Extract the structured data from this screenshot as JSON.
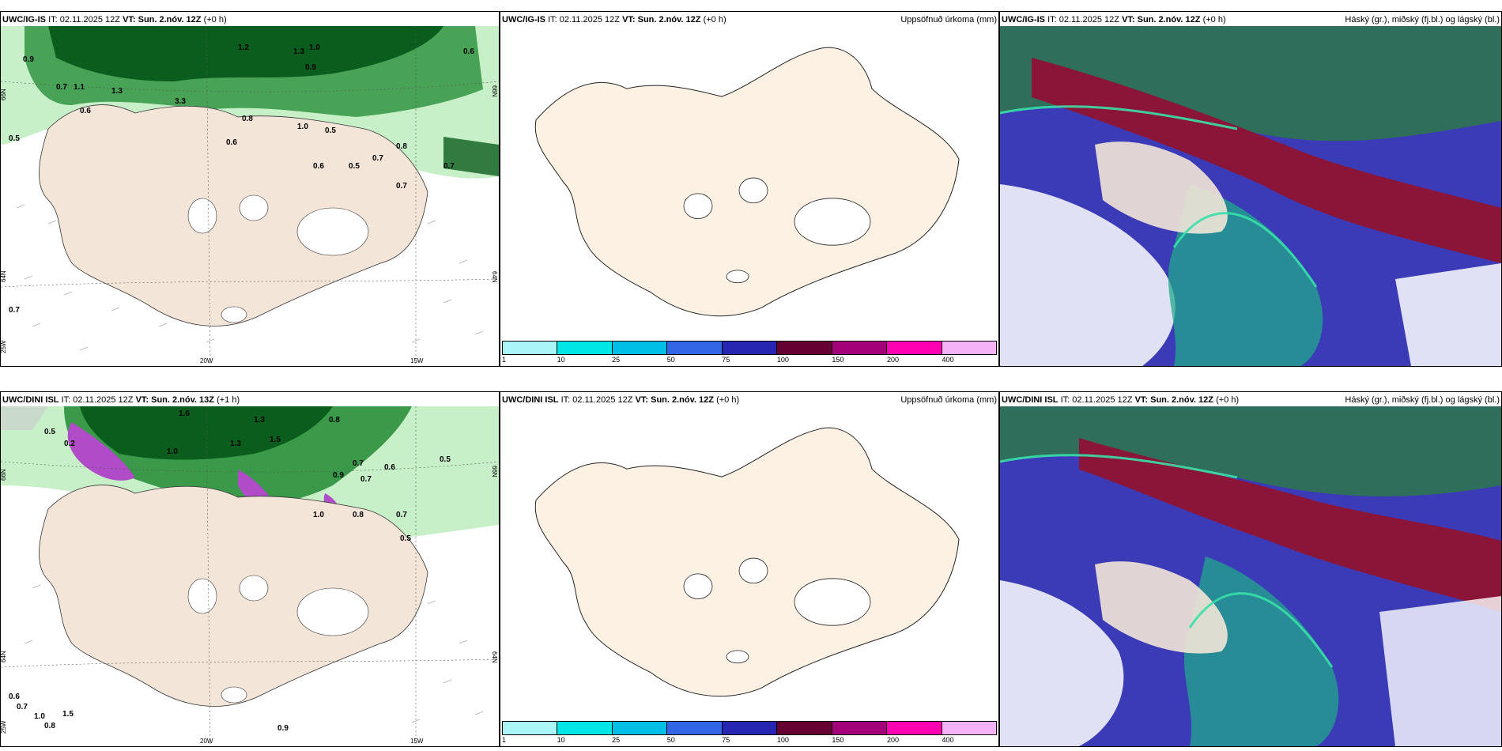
{
  "rows": [
    {
      "wind": {
        "model": "UWC/IG-IS",
        "it_label": "IT:",
        "it_value": "02.11.2025 12Z",
        "vt_label": "VT: Sun. 2.nóv. 12Z",
        "lead": "(+0 h)",
        "lat_top": "66N",
        "lat_bottom": "64N",
        "lat_right_top": "66N",
        "lat_right_bottom": "64N",
        "lon_left": "25W",
        "lon_mid": "20W",
        "lon_right": "15W",
        "values": [
          "0.9",
          "1.2",
          "1.3",
          "1.0",
          "0.9",
          "0.6",
          "0.7",
          "1.1",
          "1.3",
          "0.6",
          "3.3",
          "0.8",
          "0.5",
          "1.0",
          "0.6",
          "0.5",
          "0.8",
          "0.7",
          "0.6",
          "0.5",
          "0.7",
          "0.7",
          "0.7"
        ]
      },
      "precip": {
        "model": "UWC/IG-IS",
        "it_label": "IT:",
        "it_value": "02.11.2025 12Z",
        "vt_label": "VT: Sun. 2.nóv. 12Z",
        "lead": "(+0 h)",
        "title": "Uppsöfnuð úrkoma (mm)"
      },
      "cloud": {
        "model": "UWC/IG-IS",
        "it_label": "IT:",
        "it_value": "02.11.2025 12Z",
        "vt_label": "VT: Sun. 2.nóv. 12Z",
        "lead": "(+0 h)",
        "title": "Háský (gr.), miðský (fj.bl.) og lágský (bl.)"
      }
    },
    {
      "wind": {
        "model": "UWC/DINI ISL",
        "it_label": "IT:",
        "it_value": "02.11.2025 12Z",
        "vt_label": "VT: Sun. 2.nóv. 13Z",
        "lead": "(+1 h)",
        "lat_top": "66N",
        "lat_bottom": "64N",
        "lat_right_top": "66N",
        "lat_right_bottom": "64N",
        "lon_left": "25W",
        "lon_mid": "20W",
        "lon_right": "15W",
        "values": [
          "1.6",
          "1.3",
          "0.5",
          "0.2",
          "1.0",
          "1.3",
          "1.5",
          "0.8",
          "0.7",
          "0.9",
          "0.6",
          "0.5",
          "0.7",
          "1.0",
          "0.8",
          "0.7",
          "0.5",
          "0.6",
          "0.7",
          "1.0",
          "0.8",
          "1.5",
          "0.9"
        ]
      },
      "precip": {
        "model": "UWC/DINI ISL",
        "it_label": "IT:",
        "it_value": "02.11.2025 12Z",
        "vt_label": "VT: Sun. 2.nóv. 12Z",
        "lead": "(+0 h)",
        "title": "Uppsöfnuð úrkoma (mm)"
      },
      "cloud": {
        "model": "UWC/DINI ISL",
        "it_label": "IT:",
        "it_value": "02.11.2025 12Z",
        "vt_label": "VT: Sun. 2.nóv. 12Z",
        "lead": "(+0 h)",
        "title": "Háský (gr.), miðský (fj.bl.) og lágský (bl.)"
      }
    }
  ],
  "colorbar": {
    "ticks": [
      "1",
      "10",
      "25",
      "50",
      "75",
      "100",
      "150",
      "200",
      "400"
    ],
    "colors": [
      "#aaf5f5",
      "#00e6e6",
      "#00bfe6",
      "#3366e6",
      "#2626b3",
      "#660033",
      "#a3007a",
      "#ff00b3",
      "#f5b3f5"
    ]
  },
  "colors": {
    "land": "#f3e5d8",
    "precip_land": "#fdf1e4",
    "wind_green_dark": "#0b5d1e",
    "wind_green_mid": "#3a9a4a",
    "wind_green_light": "#c8f0c8",
    "snow_magenta": "#b04cc8",
    "cloud_high": "#8a1538",
    "cloud_mid": "#3b3bb8",
    "cloud_low": "#22a88a"
  }
}
